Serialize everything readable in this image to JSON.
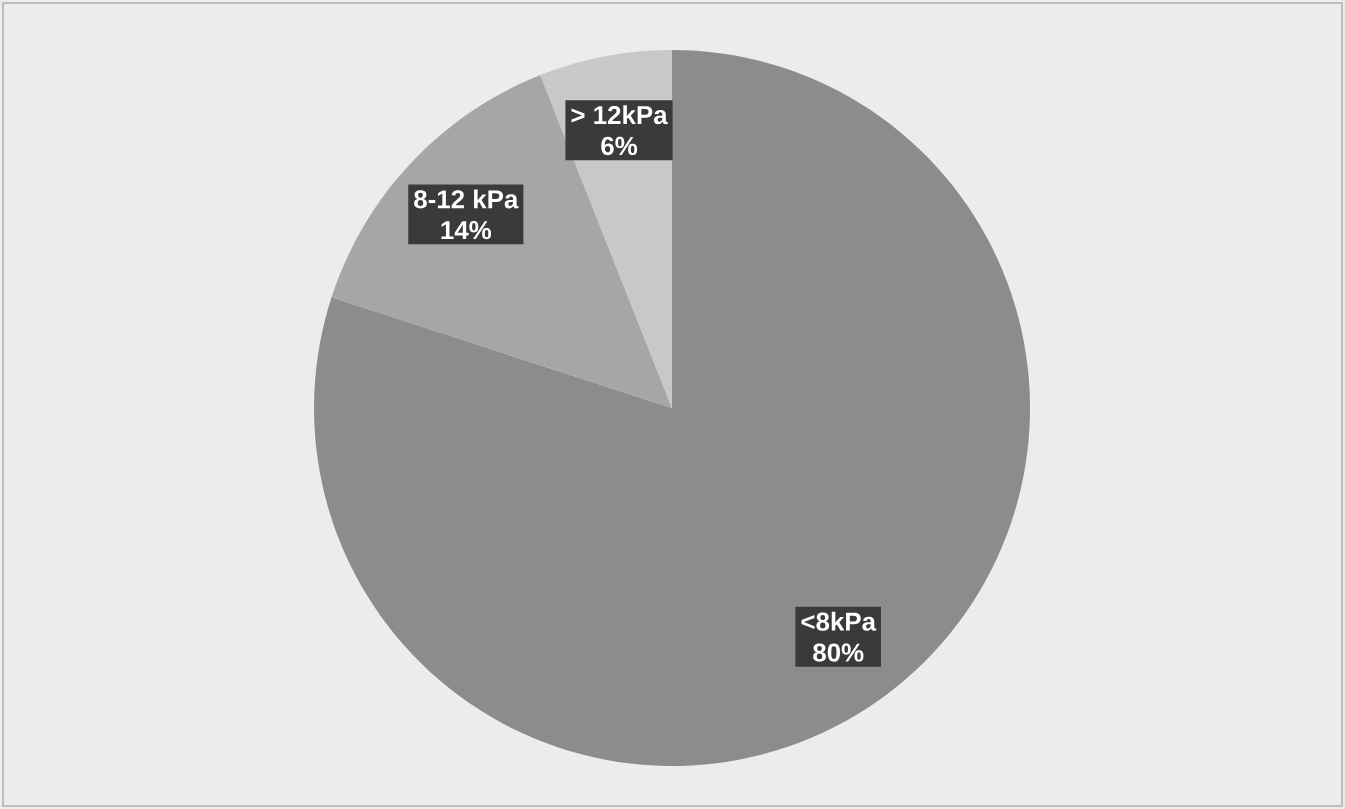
{
  "chart_data": {
    "type": "pie",
    "categories": [
      "<8kPa",
      "8-12 kPa",
      "> 12kPa"
    ],
    "values": [
      80,
      14,
      6
    ],
    "value_labels": [
      "80%",
      "14%",
      "6%"
    ],
    "colors": [
      "#8c8c8c",
      "#a6a6a6",
      "#c8c8c8"
    ]
  }
}
